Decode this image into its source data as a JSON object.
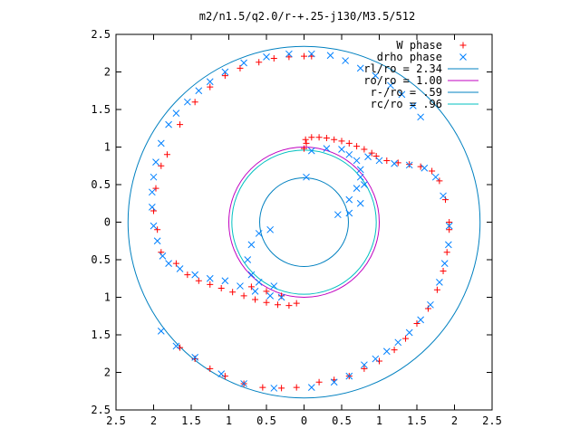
{
  "chart_data": {
    "type": "scatter",
    "title": "m2/n1.5/q2.0/r-+.25-j130/M3.5/512",
    "xlim": [
      -2.5,
      2.5
    ],
    "ylim": [
      -2.5,
      2.5
    ],
    "xticks": [
      -2.5,
      -2,
      -1.5,
      -1,
      -0.5,
      0,
      0.5,
      1,
      1.5,
      2,
      2.5
    ],
    "yticks": [
      -2.5,
      -2,
      -1.5,
      -1,
      -0.5,
      0,
      0.5,
      1,
      1.5,
      2,
      2.5
    ],
    "xtick_labels": [
      "2.5",
      "2",
      "1.5",
      "1",
      "0.5",
      "0",
      "0.5",
      "1",
      "1.5",
      "2",
      "2.5"
    ],
    "ytick_labels": [
      "2.5",
      "2",
      "1.5",
      "1",
      "0.5",
      "0",
      "0.5",
      "1",
      "1.5",
      "2",
      "2.5"
    ],
    "grid": false,
    "legend_position": "top-right",
    "legend": [
      {
        "label": "W phase",
        "marker": "plus",
        "color": "#ff0000"
      },
      {
        "label": "drho phase",
        "marker": "cross",
        "color": "#0080ff"
      },
      {
        "label": "rl/ro = 2.34",
        "marker": "line",
        "color": "#0080c0"
      },
      {
        "label": "ro/ro = 1.00",
        "marker": "line",
        "color": "#c000c0"
      },
      {
        "label": "r-/ro = .59",
        "marker": "line",
        "color": "#0080c0"
      },
      {
        "label": "rc/ro = .96",
        "marker": "line",
        "color": "#00c0c0"
      }
    ],
    "circles": [
      {
        "name": "rl/ro = 2.34",
        "radius": 2.34,
        "color": "#0080c0"
      },
      {
        "name": "ro/ro = 1.00",
        "radius": 1.0,
        "color": "#c000c0"
      },
      {
        "name": "r-/ro = .59",
        "radius": 0.59,
        "color": "#0080c0"
      },
      {
        "name": "rc/ro = .96",
        "radius": 0.96,
        "color": "#00c0c0"
      }
    ],
    "series": [
      {
        "name": "W phase",
        "marker": "plus",
        "color": "#ff0000",
        "points": [
          [
            0.02,
            1.1
          ],
          [
            0.1,
            1.13
          ],
          [
            0.2,
            1.13
          ],
          [
            0.3,
            1.12
          ],
          [
            0.4,
            1.1
          ],
          [
            0.5,
            1.08
          ],
          [
            0.6,
            1.05
          ],
          [
            0.7,
            1.01
          ],
          [
            0.8,
            0.97
          ],
          [
            0.9,
            0.92
          ],
          [
            0.96,
            0.88
          ],
          [
            0.03,
            1.05
          ],
          [
            0.0,
            0.98
          ],
          [
            1.1,
            0.82
          ],
          [
            1.25,
            0.79
          ],
          [
            1.4,
            0.77
          ],
          [
            1.55,
            0.74
          ],
          [
            1.7,
            0.68
          ],
          [
            1.8,
            0.55
          ],
          [
            1.88,
            0.3
          ],
          [
            1.93,
            0.0
          ],
          [
            1.93,
            -0.1
          ],
          [
            1.9,
            -0.4
          ],
          [
            1.85,
            -0.65
          ],
          [
            1.77,
            -0.9
          ],
          [
            1.65,
            -1.15
          ],
          [
            1.5,
            -1.35
          ],
          [
            1.35,
            -1.55
          ],
          [
            1.2,
            -1.7
          ],
          [
            1.0,
            -1.85
          ],
          [
            0.8,
            -1.95
          ],
          [
            0.6,
            -2.05
          ],
          [
            0.4,
            -2.1
          ],
          [
            0.2,
            -2.13
          ],
          [
            -0.1,
            -2.2
          ],
          [
            -0.3,
            -2.21
          ],
          [
            -0.55,
            -2.2
          ],
          [
            -0.8,
            -2.15
          ],
          [
            -1.05,
            -2.05
          ],
          [
            -1.25,
            -1.95
          ],
          [
            -1.45,
            -1.82
          ],
          [
            -1.65,
            -1.67
          ],
          [
            -1.9,
            -0.4
          ],
          [
            -1.95,
            -0.1
          ],
          [
            -2.0,
            0.15
          ],
          [
            -1.97,
            0.45
          ],
          [
            -1.9,
            0.75
          ],
          [
            -1.82,
            0.9
          ],
          [
            -1.65,
            1.3
          ],
          [
            -1.45,
            1.6
          ],
          [
            -1.25,
            1.8
          ],
          [
            -1.05,
            1.95
          ],
          [
            -0.85,
            2.05
          ],
          [
            -0.6,
            2.13
          ],
          [
            -0.4,
            2.18
          ],
          [
            -0.2,
            2.2
          ],
          [
            0.0,
            2.21
          ],
          [
            0.1,
            2.21
          ],
          [
            -1.7,
            -0.55
          ],
          [
            -1.55,
            -0.7
          ],
          [
            -1.4,
            -0.78
          ],
          [
            -1.25,
            -0.83
          ],
          [
            -1.1,
            -0.88
          ],
          [
            -0.95,
            -0.93
          ],
          [
            -0.8,
            -0.98
          ],
          [
            -0.65,
            -1.03
          ],
          [
            -0.5,
            -1.07
          ],
          [
            -0.35,
            -1.1
          ],
          [
            -0.2,
            -1.11
          ],
          [
            -0.1,
            -1.08
          ],
          [
            -0.3,
            -0.98
          ],
          [
            -0.5,
            -0.92
          ],
          [
            -0.7,
            -0.86
          ]
        ]
      },
      {
        "name": "drho phase",
        "marker": "cross",
        "color": "#0080ff",
        "points": [
          [
            0.03,
            0.6
          ],
          [
            0.1,
            0.95
          ],
          [
            0.3,
            0.98
          ],
          [
            0.5,
            0.97
          ],
          [
            0.6,
            0.9
          ],
          [
            0.7,
            0.82
          ],
          [
            0.75,
            0.7
          ],
          [
            0.8,
            0.5
          ],
          [
            0.75,
            0.25
          ],
          [
            0.6,
            0.12
          ],
          [
            0.45,
            0.1
          ],
          [
            0.6,
            0.3
          ],
          [
            0.7,
            0.45
          ],
          [
            0.75,
            0.6
          ],
          [
            0.85,
            0.87
          ],
          [
            1.0,
            0.82
          ],
          [
            1.2,
            0.78
          ],
          [
            1.4,
            0.76
          ],
          [
            1.6,
            0.72
          ],
          [
            1.75,
            0.6
          ],
          [
            1.85,
            0.35
          ],
          [
            1.93,
            -0.05
          ],
          [
            1.92,
            -0.3
          ],
          [
            1.87,
            -0.55
          ],
          [
            1.8,
            -0.8
          ],
          [
            1.68,
            -1.1
          ],
          [
            1.55,
            -1.3
          ],
          [
            1.4,
            -1.47
          ],
          [
            1.25,
            -1.6
          ],
          [
            1.1,
            -1.72
          ],
          [
            0.95,
            -1.82
          ],
          [
            0.8,
            -1.9
          ],
          [
            0.6,
            -2.05
          ],
          [
            0.4,
            -2.13
          ],
          [
            0.1,
            -2.2
          ],
          [
            -0.4,
            -2.21
          ],
          [
            -0.8,
            -2.15
          ],
          [
            -1.1,
            -2.02
          ],
          [
            -1.45,
            -1.8
          ],
          [
            -1.7,
            -1.65
          ],
          [
            -1.9,
            -1.45
          ],
          [
            -1.95,
            -0.25
          ],
          [
            -1.88,
            -0.45
          ],
          [
            -1.8,
            -0.55
          ],
          [
            -1.65,
            -0.62
          ],
          [
            -1.45,
            -0.7
          ],
          [
            -1.25,
            -0.75
          ],
          [
            -1.05,
            -0.78
          ],
          [
            -0.85,
            -0.85
          ],
          [
            -0.65,
            -0.92
          ],
          [
            -0.45,
            -0.98
          ],
          [
            -0.3,
            -1.0
          ],
          [
            -0.45,
            -0.1
          ],
          [
            -0.6,
            -0.15
          ],
          [
            -0.7,
            -0.3
          ],
          [
            -0.75,
            -0.5
          ],
          [
            -0.7,
            -0.7
          ],
          [
            -0.6,
            -0.8
          ],
          [
            -0.4,
            -0.85
          ],
          [
            -0.2,
            2.24
          ],
          [
            -0.5,
            2.2
          ],
          [
            -0.8,
            2.12
          ],
          [
            -1.05,
            2.0
          ],
          [
            -1.25,
            1.87
          ],
          [
            -1.4,
            1.75
          ],
          [
            -1.55,
            1.6
          ],
          [
            -1.7,
            1.45
          ],
          [
            -1.8,
            1.3
          ],
          [
            -1.9,
            1.05
          ],
          [
            -1.97,
            0.8
          ],
          [
            -2.0,
            0.6
          ],
          [
            -2.02,
            0.4
          ],
          [
            -2.02,
            0.2
          ],
          [
            -2.0,
            -0.05
          ],
          [
            0.1,
            2.24
          ],
          [
            0.35,
            2.22
          ],
          [
            0.55,
            2.15
          ],
          [
            0.75,
            2.05
          ],
          [
            0.95,
            1.95
          ],
          [
            1.15,
            1.82
          ],
          [
            1.3,
            1.7
          ],
          [
            1.45,
            1.55
          ],
          [
            1.55,
            1.4
          ]
        ]
      }
    ]
  }
}
